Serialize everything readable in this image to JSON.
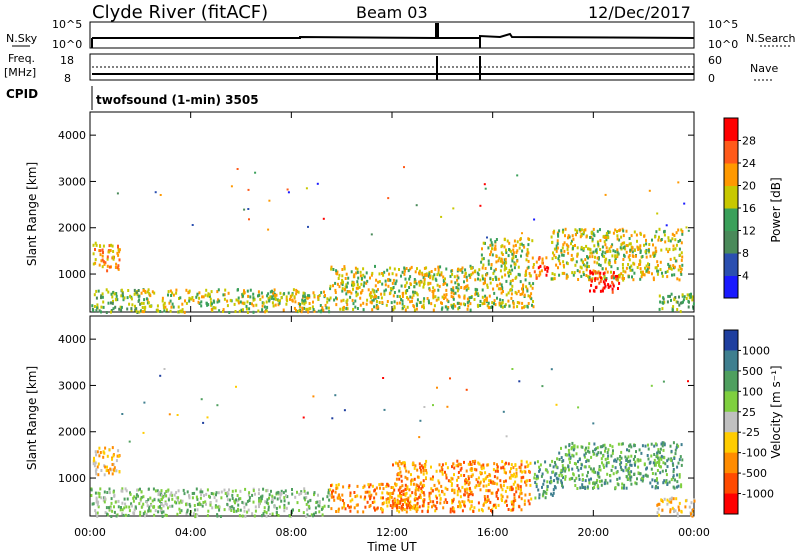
{
  "header": {
    "site": "Clyde River (fitACF)",
    "beam": "Beam 03",
    "date": "12/Dec/2017"
  },
  "status": {
    "nsky_label": "N.Sky",
    "nsky_ticks": [
      "10^5",
      "10^0"
    ],
    "nsearch_label": "N.Search",
    "nsearch_ticks": [
      "10^5",
      "10^0"
    ],
    "freq_label": "Freq.",
    "freq_unit": "[MHz]",
    "freq_ticks": [
      "18",
      "8"
    ],
    "nave_label": "Nave",
    "nave_ticks": [
      "60",
      "0"
    ],
    "cpid_label": "CPID",
    "cpid_text": "twofsound (1-min) 3505"
  },
  "chart_data": [
    {
      "type": "heatmap",
      "name": "power",
      "ylabel": "Slant Range [km]",
      "yticks": [
        "1000",
        "2000",
        "3000",
        "4000"
      ],
      "ylim": [
        180,
        4500
      ],
      "xlim_hours": [
        0,
        24
      ],
      "colorbar_label": "Power [dB]",
      "colorbar_ticks": [
        "4",
        "8",
        "12",
        "16",
        "20",
        "24",
        "28"
      ],
      "colorbar_colors": [
        "#1a1aff",
        "#2b4fb0",
        "#4a8a5a",
        "#3aa05a",
        "#c8c800",
        "#ff9900",
        "#ff5a1a",
        "#ff0000"
      ],
      "scatter_bands": [
        {
          "t0": 0.1,
          "t1": 1.2,
          "r0": 1100,
          "r1": 1700,
          "level": 5
        },
        {
          "t0": 0.0,
          "t1": 2.0,
          "r0": 200,
          "r1": 700,
          "level": 3
        },
        {
          "t0": 2.0,
          "t1": 9.5,
          "r0": 200,
          "r1": 700,
          "level": 4
        },
        {
          "t0": 9.5,
          "t1": 15.5,
          "r0": 250,
          "r1": 1200,
          "level": 4
        },
        {
          "t0": 15.5,
          "t1": 17.6,
          "r0": 300,
          "r1": 1800,
          "level": 4
        },
        {
          "t0": 17.6,
          "t1": 18.2,
          "r0": 900,
          "r1": 1400,
          "level": 6
        },
        {
          "t0": 18.3,
          "t1": 23.5,
          "r0": 900,
          "r1": 2000,
          "level": 4
        },
        {
          "t0": 19.8,
          "t1": 21.0,
          "r0": 600,
          "r1": 1100,
          "level": 7
        },
        {
          "t0": 22.5,
          "t1": 24.0,
          "r0": 200,
          "r1": 600,
          "level": 3
        }
      ]
    },
    {
      "type": "heatmap",
      "name": "velocity",
      "ylabel": "Slant Range [km]",
      "yticks": [
        "1000",
        "2000",
        "3000",
        "4000"
      ],
      "ylim": [
        180,
        4500
      ],
      "xlim_hours": [
        0,
        24
      ],
      "xticks": [
        "00:00",
        "04:00",
        "08:00",
        "12:00",
        "16:00",
        "20:00",
        "00:00"
      ],
      "xlabel": "Time UT",
      "colorbar_label": "Velocity [m s⁻¹]",
      "colorbar_ticks": [
        "1000",
        "500",
        "100",
        "25",
        "-25",
        "-100",
        "-500",
        "-1000"
      ],
      "colorbar_colors": [
        "#1f3f9f",
        "#3f7f8f",
        "#4f9f5f",
        "#7fcf3f",
        "#c0c0c0",
        "#ffcc00",
        "#ff8c00",
        "#ff4a00",
        "#ff0000"
      ],
      "scatter_bands": [
        {
          "t0": 0.1,
          "t1": 1.2,
          "r0": 1100,
          "r1": 1700,
          "level": 5
        },
        {
          "t0": 0.0,
          "t1": 9.5,
          "r0": 200,
          "r1": 800,
          "level": 3
        },
        {
          "t0": 9.5,
          "t1": 13.0,
          "r0": 300,
          "r1": 900,
          "level": 6
        },
        {
          "t0": 12.0,
          "t1": 17.5,
          "r0": 300,
          "r1": 1400,
          "level": 6
        },
        {
          "t0": 17.6,
          "t1": 18.4,
          "r0": 600,
          "r1": 1400,
          "level": 2
        },
        {
          "t0": 18.4,
          "t1": 23.5,
          "r0": 800,
          "r1": 1800,
          "level": 2
        },
        {
          "t0": 22.5,
          "t1": 24.0,
          "r0": 200,
          "r1": 600,
          "level": 5
        }
      ]
    }
  ]
}
